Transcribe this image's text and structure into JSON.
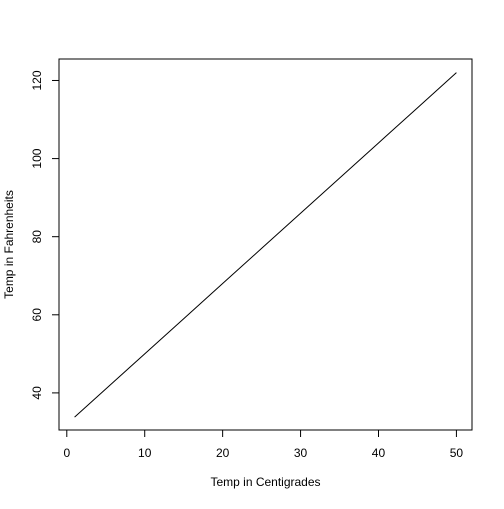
{
  "chart_data": {
    "type": "line",
    "title": "",
    "xlabel": "Temp in Centigrades",
    "ylabel": "Temp in Fahrenheits",
    "xlim": [
      -1,
      52
    ],
    "ylim": [
      30.5,
      125.5
    ],
    "x_ticks": [
      0,
      10,
      20,
      30,
      40,
      50
    ],
    "y_ticks": [
      40,
      60,
      80,
      100,
      120
    ],
    "grid": false,
    "legend": "none",
    "series": [
      {
        "x": [
          1,
          5,
          10,
          15,
          20,
          25,
          30,
          35,
          40,
          45,
          50
        ],
        "y": [
          33.8,
          41,
          50,
          59,
          68,
          77,
          86,
          95,
          104,
          113,
          122
        ],
        "color": "#000000"
      }
    ]
  }
}
